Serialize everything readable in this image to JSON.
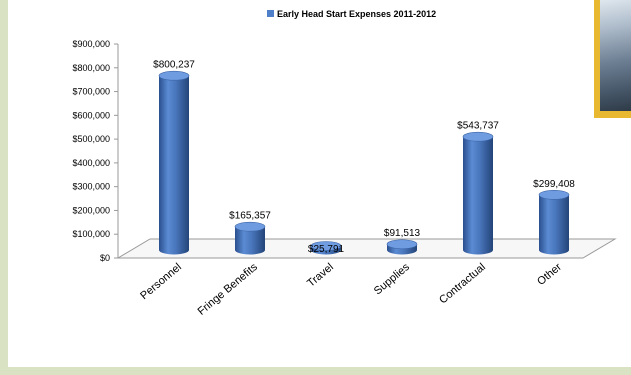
{
  "chart_data": {
    "type": "bar",
    "title": "",
    "legend": {
      "position": "top",
      "entries": [
        "Early Head Start  Expenses 2011-2012"
      ]
    },
    "series": [
      {
        "name": "Early Head Start  Expenses 2011-2012",
        "color": "#4f7fc8",
        "values": [
          800237,
          165357,
          25791,
          91513,
          543737,
          299408
        ]
      }
    ],
    "categories": [
      "Personnel",
      "Fringe Benefits",
      "Travel",
      "Supplies",
      "Contractual",
      "Other"
    ],
    "data_labels": [
      "$800,237",
      "$165,357",
      "$25,791",
      "$91,513",
      "$543,737",
      "$299,408"
    ],
    "y_ticks": [
      {
        "value": 0,
        "label": "$0"
      },
      {
        "value": 100000,
        "label": "$100,000"
      },
      {
        "value": 200000,
        "label": "$200,000"
      },
      {
        "value": 300000,
        "label": "$300,000"
      },
      {
        "value": 400000,
        "label": "$400,000"
      },
      {
        "value": 500000,
        "label": "$500,000"
      },
      {
        "value": 600000,
        "label": "$600,000"
      },
      {
        "value": 700000,
        "label": "$700,000"
      },
      {
        "value": 800000,
        "label": "$800,000"
      },
      {
        "value": 900000,
        "label": "$900,000"
      }
    ],
    "ylim": [
      0,
      900000
    ],
    "grid": false,
    "style": "3d-cylinder"
  }
}
